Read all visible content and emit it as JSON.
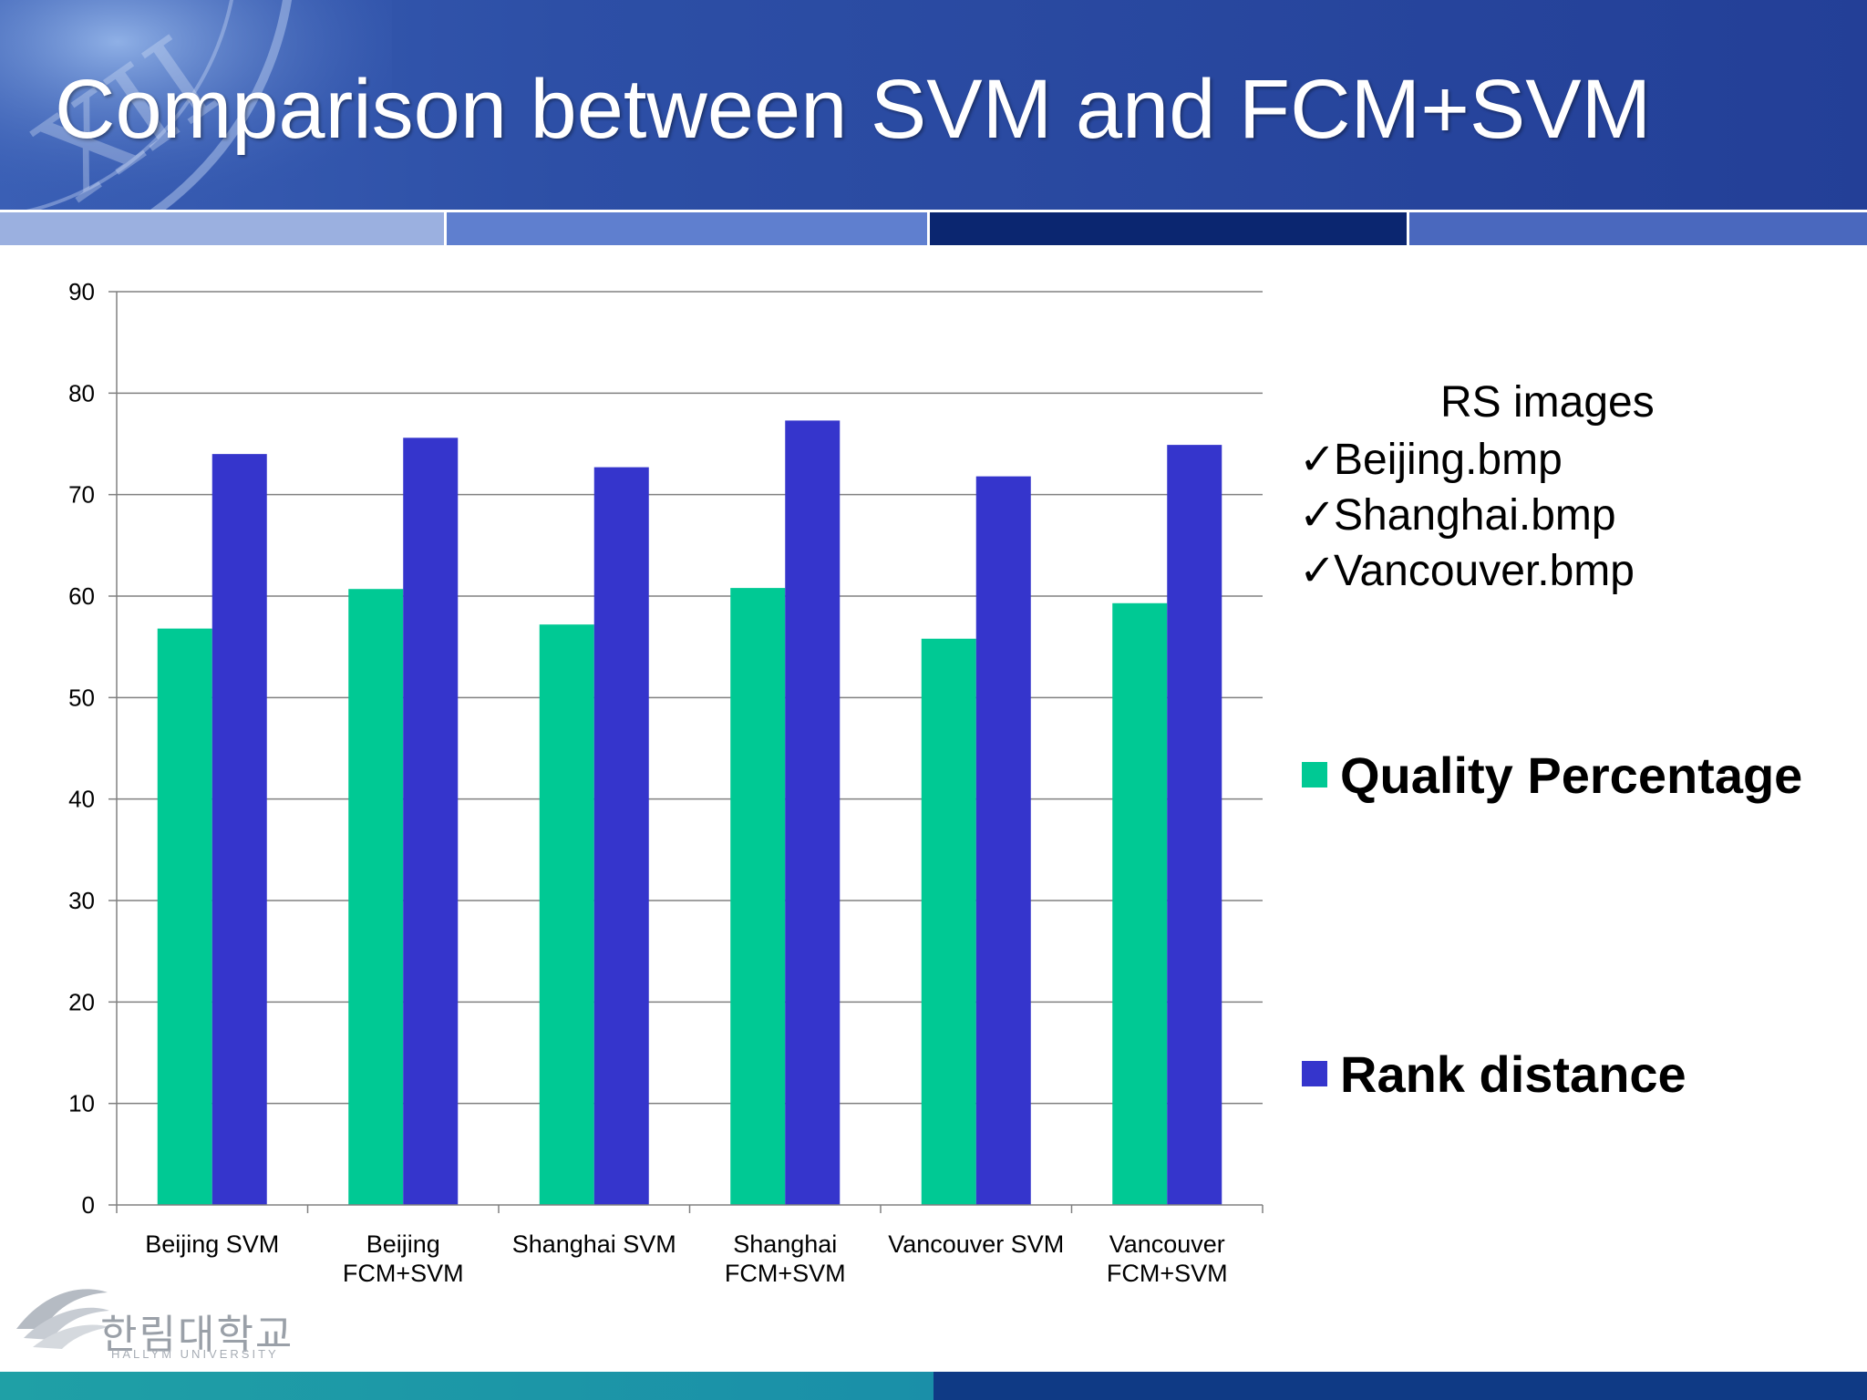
{
  "slide": {
    "title": "Comparison between SVM and FCM+SVM"
  },
  "rs_info": {
    "title": "RS images",
    "items": [
      "Beijing.bmp",
      "Shanghai.bmp",
      "Vancouver.bmp"
    ]
  },
  "colors": {
    "quality": "#00c994",
    "rank": "#3535cc",
    "header": "#2a4aa3",
    "gridline": "#808080"
  },
  "logo": {
    "text": "한림대학교",
    "subtext": "HALLYM UNIVERSITY"
  },
  "chart_data": {
    "type": "bar",
    "title": "",
    "xlabel": "",
    "ylabel": "",
    "ylim": [
      0,
      90
    ],
    "yticks": [
      0,
      10,
      20,
      30,
      40,
      50,
      60,
      70,
      80,
      90
    ],
    "grid": true,
    "legend": "right",
    "categories": [
      [
        "Beijing SVM"
      ],
      [
        "Beijing",
        "FCM+SVM"
      ],
      [
        "Shanghai SVM"
      ],
      [
        "Shanghai",
        "FCM+SVM"
      ],
      [
        "Vancouver SVM"
      ],
      [
        "Vancouver",
        "FCM+SVM"
      ]
    ],
    "series": [
      {
        "name": "Quality Percentage",
        "values": [
          56.8,
          60.7,
          57.2,
          60.8,
          55.8,
          59.3
        ]
      },
      {
        "name": "Rank distance",
        "values": [
          74.0,
          75.6,
          72.7,
          77.3,
          71.8,
          74.9
        ]
      }
    ]
  }
}
